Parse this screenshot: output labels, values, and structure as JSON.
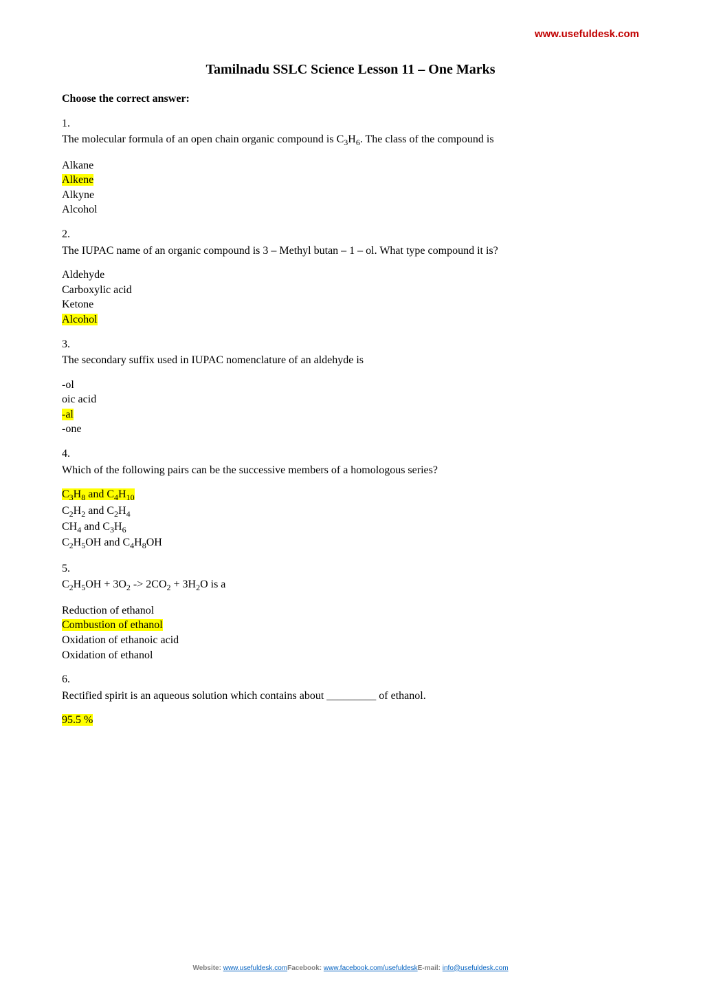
{
  "header": {
    "site_url": "www.usefuldesk.com"
  },
  "title": "Tamilnadu SSLC Science Lesson 11 – One Marks",
  "section_heading": "Choose the correct answer:",
  "questions": [
    {
      "num": "1.",
      "text_html": "The molecular formula of an open chain organic compound is C<sub>3</sub>H<sub>6</sub>. The class of the compound is",
      "options": [
        "Alkane",
        "Alkene",
        "Alkyne",
        "Alcohol"
      ],
      "answer_index": 1
    },
    {
      "num": "2.",
      "text_html": "The IUPAC name of an organic compound is 3 – Methyl butan – 1 – ol. What type compound it is?",
      "options": [
        "Aldehyde",
        "Carboxylic acid",
        "Ketone",
        "Alcohol"
      ],
      "answer_index": 3
    },
    {
      "num": "3.",
      "text_html": "The secondary suffix used in IUPAC nomenclature of an aldehyde is",
      "options": [
        "-ol",
        "oic acid",
        "-al",
        "-one"
      ],
      "answer_index": 2
    },
    {
      "num": "4.",
      "text_html": "Which of the following pairs can be the successive members of a homologous series?",
      "options_html": [
        "C<sub>3</sub>H<sub>8</sub> and C<sub>4</sub>H<sub>10</sub>",
        "C<sub>2</sub>H<sub>2</sub> and C<sub>2</sub>H<sub>4</sub>",
        "CH<sub>4</sub> and C<sub>3</sub>H<sub>6</sub>",
        "C<sub>2</sub>H<sub>5</sub>OH and C<sub>4</sub>H<sub>8</sub>OH"
      ],
      "answer_index": 0
    },
    {
      "num": "5.",
      "text_html": "C<sub>2</sub>H<sub>5</sub>OH + 3O<sub>2</sub> -> 2CO<sub>2</sub> + 3H<sub>2</sub>O is a",
      "options": [
        "Reduction of ethanol",
        "Combustion of ethanol",
        "Oxidation of ethanoic acid",
        "Oxidation of ethanol"
      ],
      "answer_index": 1
    },
    {
      "num": "6.",
      "text_html": "Rectified spirit is an aqueous solution which contains about _________ of ethanol.",
      "options": [
        "95.5 %"
      ],
      "answer_index": 0
    }
  ],
  "footer": {
    "website_label": "Website: ",
    "website_link": "www.usefuldesk.com",
    "facebook_label": "Facebook: ",
    "facebook_link": "www.facebook.com/usefuldesk",
    "email_label": "E-mail: ",
    "email_link": "info@usefuldesk.com"
  },
  "colors": {
    "header_red": "#c00000",
    "highlight": "#ffff00",
    "link_blue": "#0563c1",
    "footer_grey": "#7f7f7f",
    "text": "#000000",
    "background": "#ffffff"
  }
}
